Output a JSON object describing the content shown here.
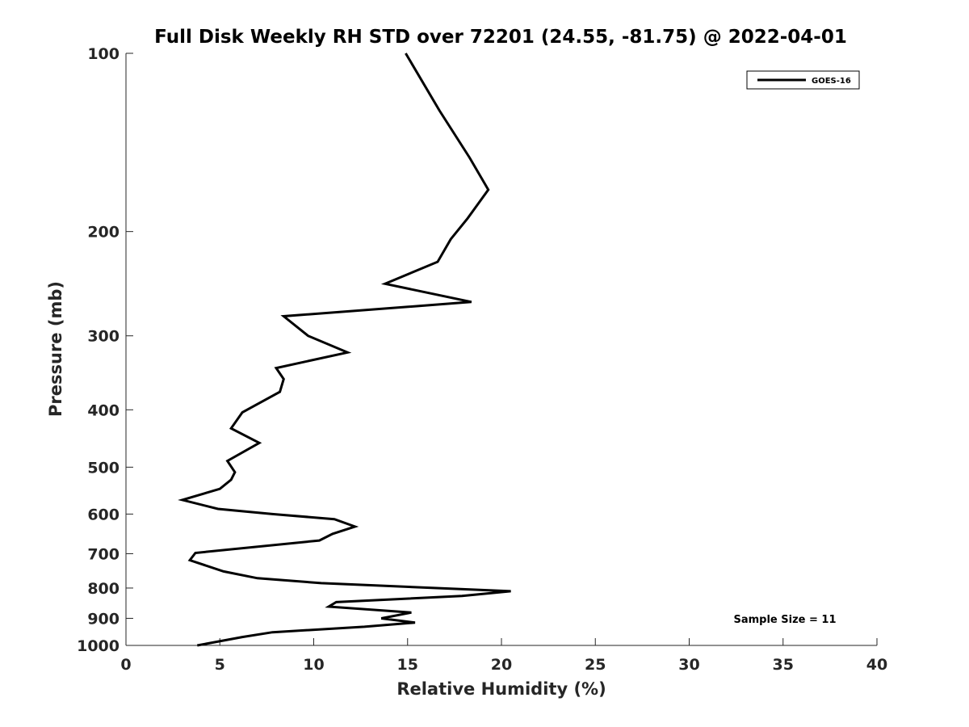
{
  "chart_data": {
    "type": "line",
    "title": "Full Disk Weekly RH STD over 72201 (24.55, -81.75) @ 2022-04-01",
    "xlabel": "Relative Humidity (%)",
    "ylabel": "Pressure (mb)",
    "xlim": [
      0,
      40
    ],
    "ylim": [
      100,
      1000
    ],
    "yscale": "log",
    "yreversed": true,
    "xticks": [
      0,
      5,
      10,
      15,
      20,
      25,
      30,
      35,
      40
    ],
    "yticks": [
      100,
      200,
      300,
      400,
      500,
      600,
      700,
      800,
      900,
      1000
    ],
    "legend": {
      "position": "top-right",
      "entries": [
        "GOES-16"
      ]
    },
    "annotation": "Sample Size = 11",
    "color": "#000000",
    "series": [
      {
        "name": "GOES-16",
        "points": [
          [
            14.9,
            100
          ],
          [
            16.7,
            125
          ],
          [
            18.3,
            150
          ],
          [
            19.3,
            170
          ],
          [
            18.2,
            190
          ],
          [
            17.3,
            206
          ],
          [
            16.6,
            225
          ],
          [
            13.8,
            245
          ],
          [
            18.4,
            263
          ],
          [
            8.4,
            278
          ],
          [
            9.7,
            300
          ],
          [
            11.8,
            320
          ],
          [
            8.0,
            340
          ],
          [
            8.4,
            355
          ],
          [
            8.2,
            373
          ],
          [
            6.2,
            404
          ],
          [
            5.6,
            430
          ],
          [
            7.1,
            455
          ],
          [
            5.4,
            488
          ],
          [
            5.8,
            510
          ],
          [
            5.6,
            525
          ],
          [
            5.0,
            544
          ],
          [
            3.0,
            568
          ],
          [
            4.9,
            588
          ],
          [
            7.8,
            600
          ],
          [
            11.1,
            612
          ],
          [
            12.2,
            630
          ],
          [
            11.0,
            648
          ],
          [
            10.3,
            665
          ],
          [
            3.7,
            698
          ],
          [
            3.4,
            718
          ],
          [
            5.2,
            750
          ],
          [
            7.0,
            770
          ],
          [
            10.4,
            785
          ],
          [
            20.5,
            810
          ],
          [
            17.9,
            825
          ],
          [
            11.2,
            845
          ],
          [
            10.8,
            860
          ],
          [
            15.2,
            880
          ],
          [
            13.6,
            900
          ],
          [
            15.4,
            915
          ],
          [
            12.7,
            930
          ],
          [
            7.8,
            950
          ],
          [
            6.2,
            968
          ],
          [
            3.8,
            1000
          ]
        ]
      }
    ]
  }
}
